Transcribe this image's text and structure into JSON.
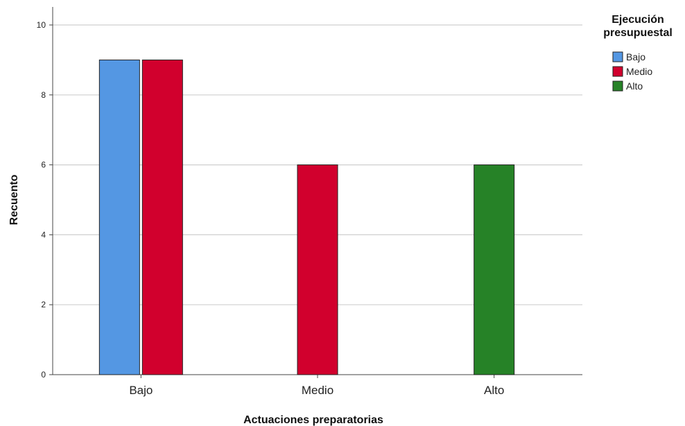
{
  "chart_data": {
    "type": "bar",
    "categories": [
      "Bajo",
      "Medio",
      "Alto"
    ],
    "series": [
      {
        "name": "Bajo",
        "values": [
          9,
          0,
          0
        ]
      },
      {
        "name": "Medio",
        "values": [
          9,
          6,
          0
        ]
      },
      {
        "name": "Alto",
        "values": [
          0,
          0,
          6
        ]
      }
    ],
    "colors": [
      "#5497e3",
      "#d1002d",
      "#268227"
    ],
    "xlabel": "Actuaciones preparatorias",
    "ylabel": "Recuento",
    "ylim": [
      0,
      10
    ],
    "yticks": [
      0,
      2,
      4,
      6,
      8,
      10
    ],
    "grid": true,
    "legend": {
      "title_line1": "Ejecución",
      "title_line2": "presupuestal",
      "placement": "top-right"
    }
  }
}
